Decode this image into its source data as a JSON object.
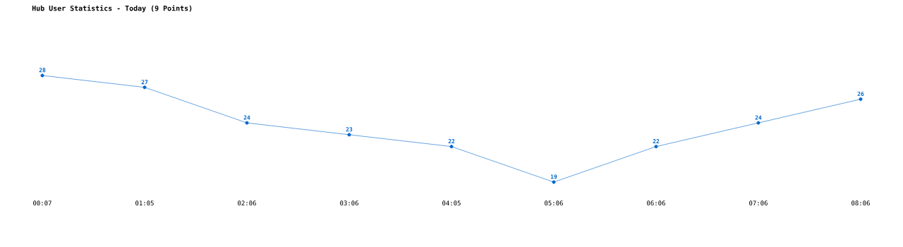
{
  "chart_data": {
    "type": "line",
    "title": "Hub User Statistics - Today (9 Points)",
    "categories": [
      "00:07",
      "01:05",
      "02:06",
      "03:06",
      "04:05",
      "05:06",
      "06:06",
      "07:06",
      "08:06"
    ],
    "series": [
      {
        "color": "#0066cc",
        "values": [
          28,
          27,
          24,
          23,
          22,
          19,
          22,
          24,
          26
        ]
      }
    ],
    "data_labels": true,
    "marker": "circle",
    "line_style": "solid"
  }
}
